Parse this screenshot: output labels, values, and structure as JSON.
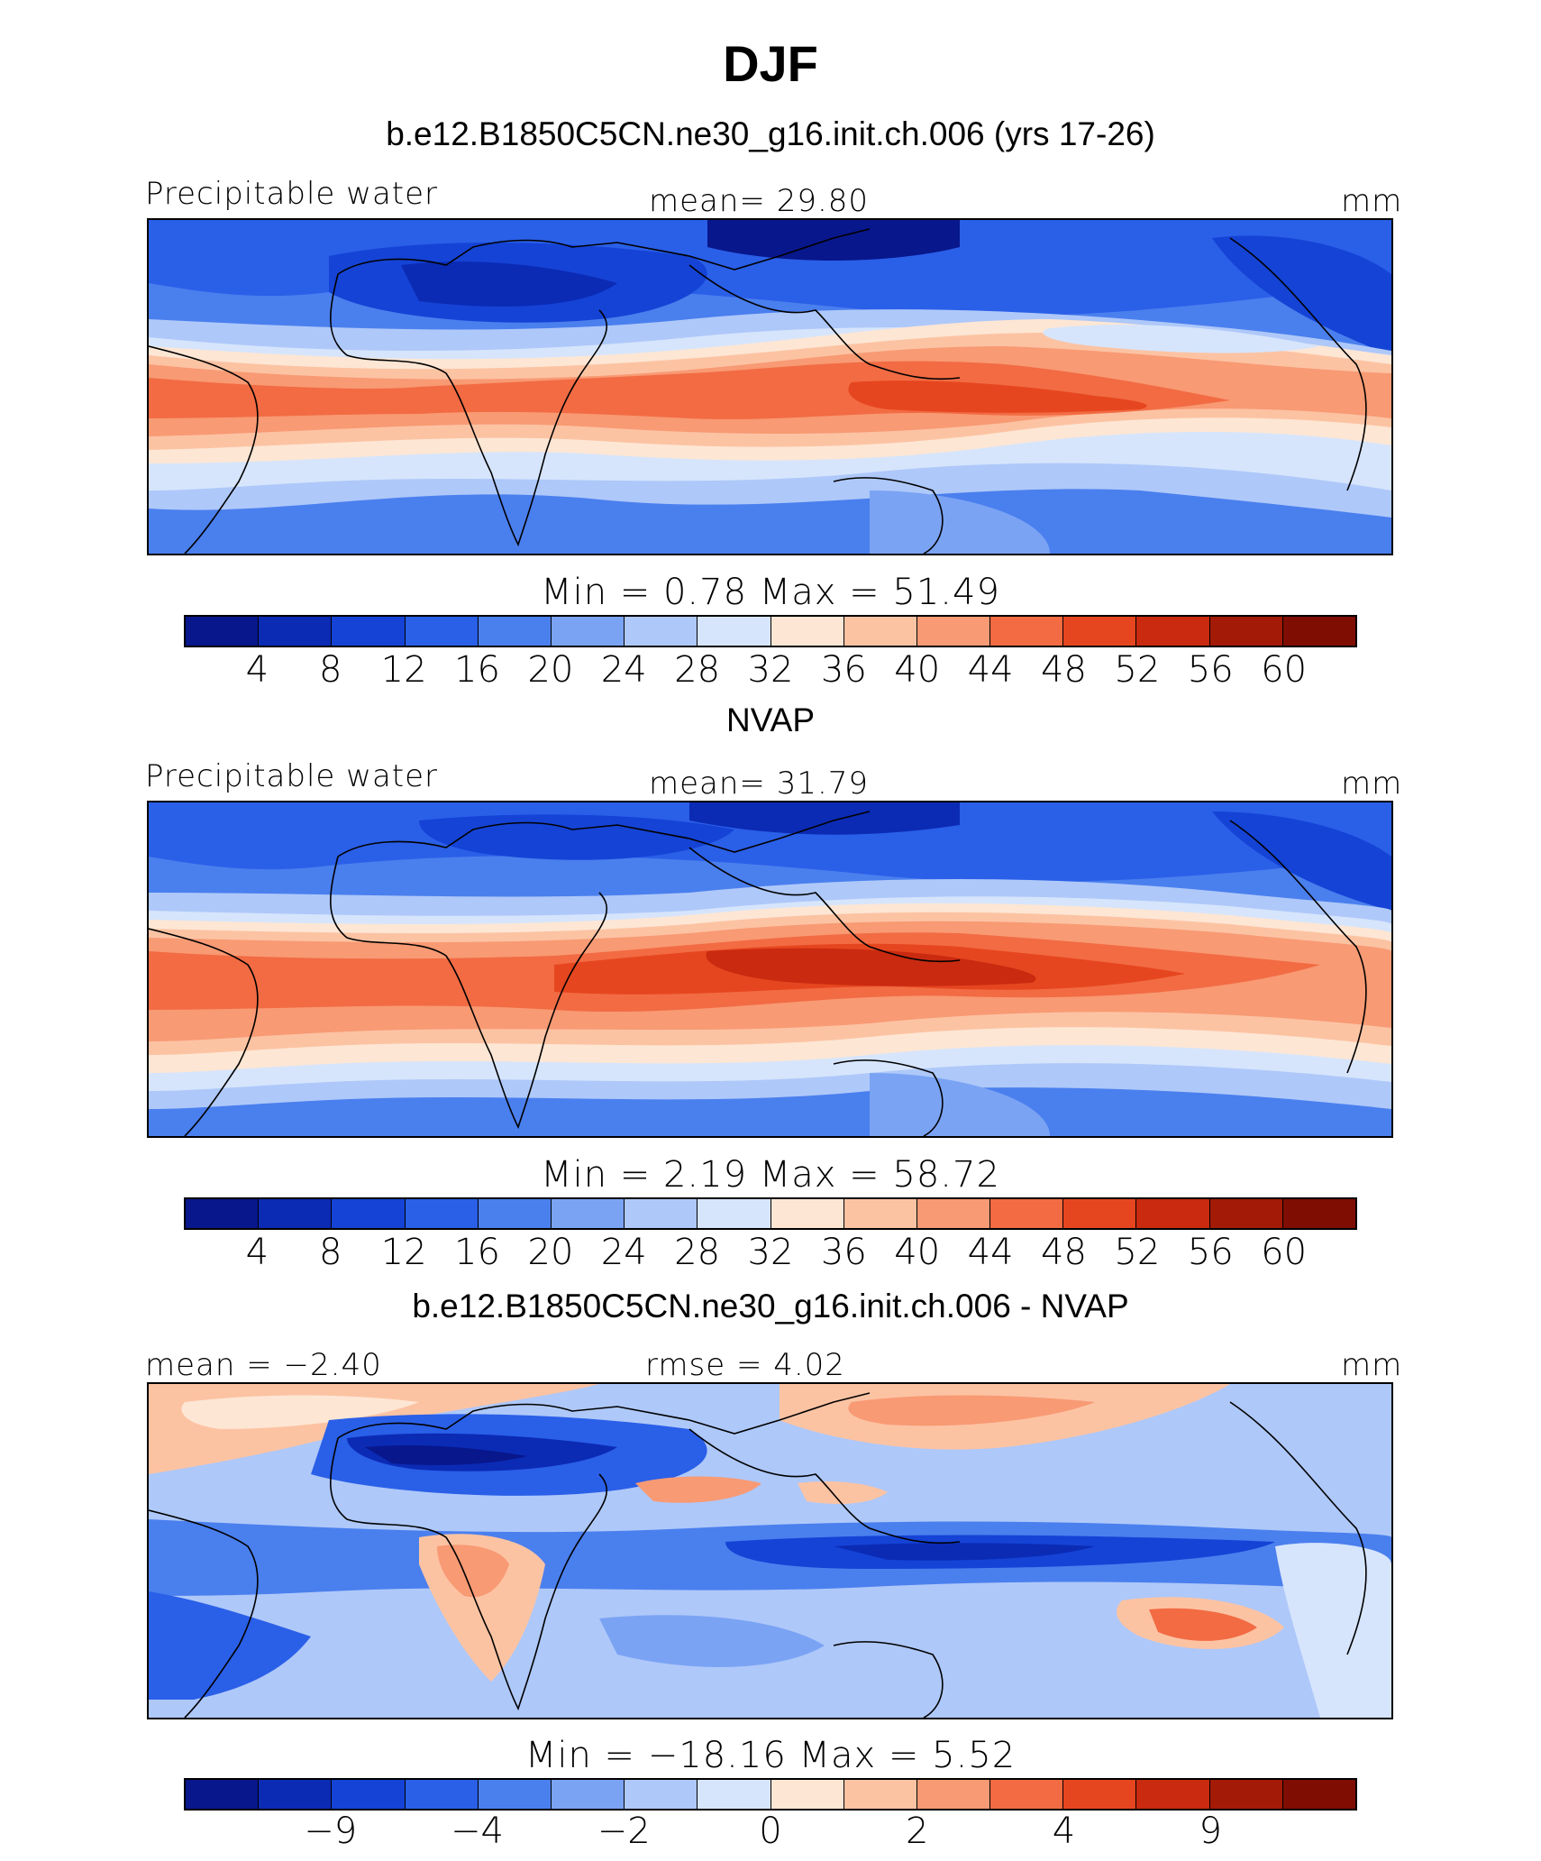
{
  "title": "DJF",
  "colors": [
    "#08178c",
    "#0b2bb5",
    "#1543d6",
    "#2a5fe8",
    "#4a7fee",
    "#7ba3f4",
    "#aec8f9",
    "#d6e5fc",
    "#fde6d4",
    "#fcc3a3",
    "#f89a74",
    "#f26b43",
    "#e6461f",
    "#c92a10",
    "#a31a07",
    "#7f0d02"
  ],
  "panels": [
    {
      "title": "b.e12.B1850C5CN.ne30_g16.init.ch.006 (yrs 17-26)",
      "left_label": "Precipitable water",
      "center_label": "mean=   29.80",
      "units": "mm",
      "minmax": "Min  =     0.78  Max  =    51.49",
      "tick_labels": [
        "4",
        "8",
        "12",
        "16",
        "20",
        "24",
        "28",
        "32",
        "36",
        "40",
        "44",
        "48",
        "52",
        "56",
        "60"
      ]
    },
    {
      "title": "NVAP",
      "left_label": "Precipitable water",
      "center_label": "mean=   31.79",
      "units": "mm",
      "minmax": "Min  =     2.19  Max  =    58.72",
      "tick_labels": [
        "4",
        "8",
        "12",
        "16",
        "20",
        "24",
        "28",
        "32",
        "36",
        "40",
        "44",
        "48",
        "52",
        "56",
        "60"
      ]
    },
    {
      "title": "b.e12.B1850C5CN.ne30_g16.init.ch.006 - NVAP",
      "left_label": "mean  =   −2.40",
      "center_label": "rmse  =     4.02",
      "units": "mm",
      "minmax": "Min  =  −18.16  Max  =     5.52",
      "tick_labels": [
        "−9",
        "−4",
        "−2",
        "0",
        "2",
        "4",
        "9"
      ]
    }
  ],
  "chart_data": [
    {
      "type": "heatmap",
      "title": "b.e12.B1850C5CN.ne30_g16.init.ch.006 (yrs 17-26)",
      "variable": "Precipitable water",
      "units": "mm",
      "mean": 29.8,
      "min": 0.78,
      "max": 51.49,
      "levels": [
        4,
        8,
        12,
        16,
        20,
        24,
        28,
        32,
        36,
        40,
        44,
        48,
        52,
        56,
        60
      ]
    },
    {
      "type": "heatmap",
      "title": "NVAP",
      "variable": "Precipitable water",
      "units": "mm",
      "mean": 31.79,
      "min": 2.19,
      "max": 58.72,
      "levels": [
        4,
        8,
        12,
        16,
        20,
        24,
        28,
        32,
        36,
        40,
        44,
        48,
        52,
        56,
        60
      ]
    },
    {
      "type": "heatmap",
      "title": "b.e12.B1850C5CN.ne30_g16.init.ch.006 - NVAP",
      "units": "mm",
      "mean": -2.4,
      "rmse": 4.02,
      "min": -18.16,
      "max": 5.52,
      "levels": [
        -9,
        -4,
        -2,
        0,
        2,
        4,
        9
      ]
    }
  ]
}
